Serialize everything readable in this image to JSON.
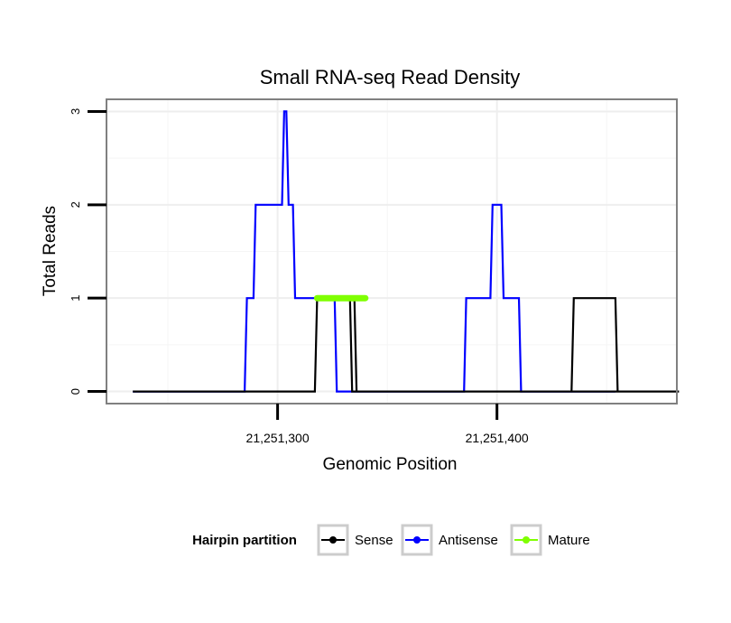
{
  "chart_data": {
    "type": "line",
    "title": "Small RNA-seq Read Density",
    "xlabel": "Genomic Position",
    "ylabel": "Total Reads",
    "xlim": [
      21251222,
      21251482
    ],
    "ylim": [
      -0.13,
      3.13
    ],
    "x_ticks": [
      {
        "value": 21251300,
        "label": "21,251,300"
      },
      {
        "value": 21251400,
        "label": "21,251,400"
      }
    ],
    "y_ticks": [
      {
        "value": 0,
        "label": "0"
      },
      {
        "value": 1,
        "label": "1"
      },
      {
        "value": 2,
        "label": "2"
      },
      {
        "value": 3,
        "label": "3"
      }
    ],
    "grid": true,
    "legend": {
      "title": "Hairpin partition",
      "position": "bottom",
      "entries": [
        "Sense",
        "Antisense",
        "Mature"
      ]
    },
    "series": [
      {
        "name": "Sense",
        "color": "#000000",
        "x": [
          21251234,
          21251317,
          21251318,
          21251333,
          21251334,
          21251483
        ],
        "y": [
          0,
          0,
          1,
          1,
          0,
          0
        ],
        "extra_segments": [
          {
            "x": [
              21251327,
              21251327,
              21251335,
              21251336
            ],
            "y": [
              1,
              1,
              1,
              0
            ]
          },
          {
            "x": [
              21251434,
              21251435,
              21251454,
              21251455
            ],
            "y": [
              0,
              1,
              1,
              0
            ]
          }
        ]
      },
      {
        "name": "Antisense",
        "color": "#0000ff",
        "x": [
          21251234,
          21251285,
          21251286,
          21251289,
          21251290,
          21251302,
          21251303,
          21251304,
          21251305,
          21251307,
          21251308,
          21251326,
          21251327,
          21251335,
          21251385,
          21251386,
          21251397,
          21251398,
          21251402,
          21251403,
          21251410,
          21251411,
          21251432,
          21251454
        ],
        "y": [
          0,
          0,
          1,
          1,
          2,
          2,
          3,
          3,
          2,
          2,
          1,
          1,
          0,
          0,
          0,
          1,
          1,
          2,
          2,
          1,
          1,
          0,
          0,
          0
        ]
      },
      {
        "name": "Mature",
        "color": "#7fff00",
        "x": [
          21251318,
          21251340
        ],
        "y": [
          1,
          1
        ]
      }
    ]
  }
}
